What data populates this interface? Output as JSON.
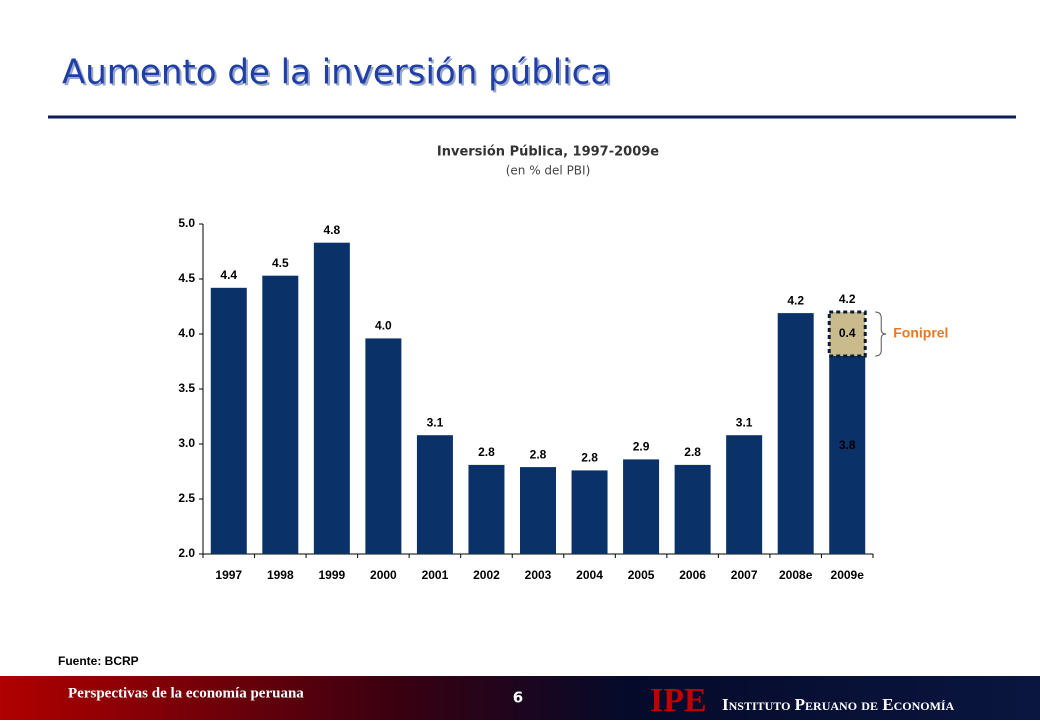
{
  "header": {
    "title": "Aumento de la inversión pública"
  },
  "chart_data": {
    "type": "bar",
    "title": "Inversión Pública, 1997-2009e",
    "subtitle": "(en % del PBI)",
    "categories": [
      "1997",
      "1998",
      "1999",
      "2000",
      "2001",
      "2002",
      "2003",
      "2004",
      "2005",
      "2006",
      "2007",
      "2008e",
      "2009e"
    ],
    "series": [
      {
        "color": "#0b3268",
        "values": [
          4.42,
          4.53,
          4.83,
          3.96,
          3.08,
          2.81,
          2.79,
          2.76,
          2.86,
          2.81,
          3.08,
          4.19,
          3.8
        ],
        "value_labels": [
          "4.4",
          "4.5",
          "4.8",
          "4.0",
          "3.1",
          "2.8",
          "2.8",
          "2.8",
          "2.9",
          "2.8",
          "3.1",
          "4.2",
          "3.8"
        ]
      },
      {
        "name": "Foniprel",
        "color": "#c9bb8c",
        "values": [
          null,
          null,
          null,
          null,
          null,
          null,
          null,
          null,
          null,
          null,
          null,
          null,
          0.4
        ],
        "value_labels": [
          null,
          null,
          null,
          null,
          null,
          null,
          null,
          null,
          null,
          null,
          null,
          null,
          "0.4"
        ]
      }
    ],
    "stack_total_label": "4.2",
    "ylim": [
      2,
      5
    ],
    "yticks": [
      {
        "value": 2,
        "label": "2.0"
      },
      2.5,
      {
        "value": 3,
        "label": "3.0"
      },
      3.5,
      {
        "value": 4,
        "label": "4.0"
      },
      4.5,
      {
        "value": 5,
        "label": "5.0"
      }
    ],
    "grid": false
  },
  "source": "Fuente: BCRP",
  "footer": {
    "left": "Perspectivas de la economía peruana",
    "page": "6",
    "logo": "IPE",
    "institute": "Instituto Peruano de Economía"
  }
}
